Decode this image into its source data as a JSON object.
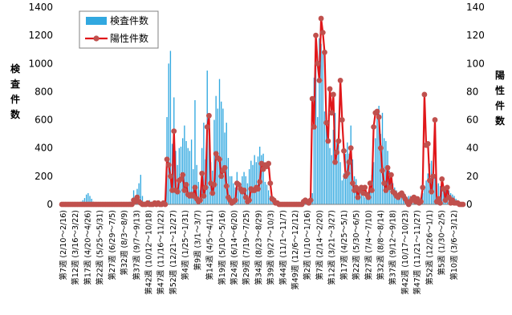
{
  "chart_data": {
    "type": "bar",
    "title": "",
    "ylabel_left": "検査件数",
    "ylabel_right": "陽性件数",
    "ylim_left": [
      0,
      1400
    ],
    "ylim_right": [
      0,
      140
    ],
    "y_ticks_left": [
      "0",
      "200",
      "400",
      "600",
      "800",
      "1000",
      "1200",
      "1400"
    ],
    "y_ticks_right": [
      "0",
      "20",
      "40",
      "60",
      "80",
      "100",
      "120",
      "140"
    ],
    "legend": {
      "placement": "top-left",
      "entries": [
        "検査件数",
        "陽性件数"
      ]
    },
    "grid": false,
    "colors": {
      "bars": "#31a8e0",
      "line": "#e0171a",
      "marker": "#c0504d"
    },
    "x_tick_labels": [
      "第7週 (2/10～2/16)",
      "第12週 (3/16～3/22)",
      "第17週 (4/20～4/26)",
      "第22週 (5/25～5/31)",
      "第27週 (6/29～7/5)",
      "第32週 (8/3～8/9)",
      "第37週 (9/7～9/13)",
      "第42週 (10/12～10/18)",
      "第47週 (11/16～11/22)",
      "第52週 (12/21～12/27)",
      "第4週 (1/25～1/31)",
      "第9週 (3/1～3/7)",
      "第14週 (4/5～4/11)",
      "第19週 (5/10～5/16)",
      "第24週 (6/14～6/20)",
      "第29週 (7/19～7/25)",
      "第34週 (8/23～8/29)",
      "第39週 (9/27～10/3)",
      "第44週 (11/1～11/7)",
      "第49週 (12/6～12/12)",
      "第2週 (1/10～1/16)",
      "第7週 (2/14～2/20)",
      "第12週 (3/21～3/27)",
      "第17週 (4/25～5/1)",
      "第22週 (5/30～6/5)",
      "第27週 (7/4～7/10)",
      "第32週 (8/8～8/14)",
      "第37週 (9/12～9/18)",
      "第42週 (10/17～10/23)",
      "第47週 (11/21～11/27)",
      "第52週 (12/26～1/1)",
      "第5週 (1/30～2/5)",
      "第10週 (3/6～3/12)"
    ],
    "series": [
      {
        "name": "検査件数",
        "type": "bar",
        "axis": "left",
        "values": [
          0,
          0,
          0,
          0,
          0,
          0,
          0,
          0,
          0,
          0,
          10,
          20,
          30,
          45,
          70,
          80,
          60,
          40,
          20,
          10,
          5,
          5,
          0,
          0,
          0,
          0,
          0,
          0,
          0,
          0,
          0,
          0,
          0,
          0,
          0,
          0,
          0,
          0,
          10,
          20,
          40,
          100,
          60,
          110,
          150,
          210,
          60,
          20,
          10,
          20,
          30,
          20,
          20,
          10,
          20,
          20,
          10,
          20,
          20,
          30,
          620,
          1000,
          1090,
          430,
          760,
          380,
          280,
          400,
          410,
          470,
          560,
          450,
          400,
          380,
          460,
          250,
          740,
          280,
          160,
          100,
          400,
          580,
          320,
          950,
          620,
          300,
          240,
          600,
          770,
          680,
          890,
          730,
          680,
          510,
          580,
          330,
          200,
          200,
          150,
          120,
          230,
          150,
          150,
          200,
          230,
          200,
          150,
          250,
          310,
          280,
          350,
          300,
          340,
          410,
          350,
          360,
          160,
          140,
          100,
          60,
          20,
          10,
          10,
          5,
          5,
          5,
          0,
          0,
          0,
          0,
          0,
          0,
          0,
          0,
          0,
          5,
          5,
          10,
          20,
          30,
          20,
          20,
          30,
          80,
          900,
          1060,
          620,
          1180,
          1140,
          1090,
          660,
          560,
          450,
          400,
          350,
          530,
          650,
          440,
          420,
          300,
          170,
          220,
          360,
          440,
          360,
          560,
          320,
          200,
          180,
          120,
          100,
          80,
          60,
          50,
          70,
          70,
          110,
          210,
          300,
          470,
          660,
          700,
          500,
          650,
          470,
          450,
          380,
          240,
          200,
          150,
          120,
          100,
          80,
          90,
          70,
          60,
          60,
          50,
          60,
          60,
          40,
          30,
          30,
          40,
          40,
          50,
          80,
          130,
          170,
          220,
          290,
          310,
          220,
          200,
          140,
          150,
          130,
          140,
          130,
          120,
          100,
          100,
          80,
          70,
          60,
          40,
          30,
          20,
          10,
          5
        ]
      },
      {
        "name": "陽性件数",
        "type": "line",
        "axis": "right",
        "values": [
          0,
          0,
          0,
          0,
          0,
          0,
          0,
          0,
          0,
          0,
          0,
          0,
          0,
          0,
          0,
          0,
          0,
          0,
          0,
          0,
          0,
          0,
          0,
          0,
          0,
          0,
          0,
          0,
          0,
          0,
          0,
          0,
          0,
          0,
          0,
          0,
          0,
          0,
          0,
          0,
          0,
          3,
          2,
          5,
          2,
          1,
          0,
          0,
          0,
          1,
          0,
          0,
          0,
          1,
          0,
          1,
          0,
          0,
          1,
          0,
          32,
          28,
          20,
          10,
          52,
          10,
          9,
          17,
          18,
          21,
          10,
          14,
          7,
          6,
          7,
          6,
          12,
          4,
          2,
          3,
          22,
          6,
          12,
          55,
          63,
          15,
          8,
          14,
          36,
          33,
          32,
          20,
          24,
          26,
          13,
          5,
          3,
          1,
          2,
          3,
          15,
          14,
          11,
          9,
          10,
          5,
          2,
          3,
          11,
          10,
          10,
          12,
          11,
          16,
          29,
          25,
          28,
          27,
          29,
          15,
          4,
          3,
          1,
          1,
          0,
          0,
          0,
          0,
          0,
          0,
          0,
          0,
          0,
          0,
          0,
          0,
          0,
          0,
          2,
          3,
          2,
          1,
          3,
          75,
          55,
          120,
          100,
          88,
          132,
          122,
          108,
          58,
          45,
          82,
          65,
          78,
          30,
          37,
          45,
          88,
          60,
          38,
          20,
          22,
          30,
          40,
          15,
          10,
          12,
          5,
          10,
          12,
          8,
          12,
          7,
          5,
          15,
          10,
          55,
          65,
          66,
          62,
          40,
          24,
          15,
          10,
          26,
          12,
          21,
          9,
          8,
          6,
          5,
          7,
          8,
          6,
          4,
          2,
          0,
          2,
          4,
          5,
          2,
          4,
          1,
          2,
          12,
          78,
          42,
          43,
          17,
          9,
          20,
          60,
          2,
          4,
          1,
          18,
          11,
          3,
          12,
          5,
          1,
          3,
          1,
          1,
          1,
          0,
          0,
          0
        ]
      }
    ]
  }
}
